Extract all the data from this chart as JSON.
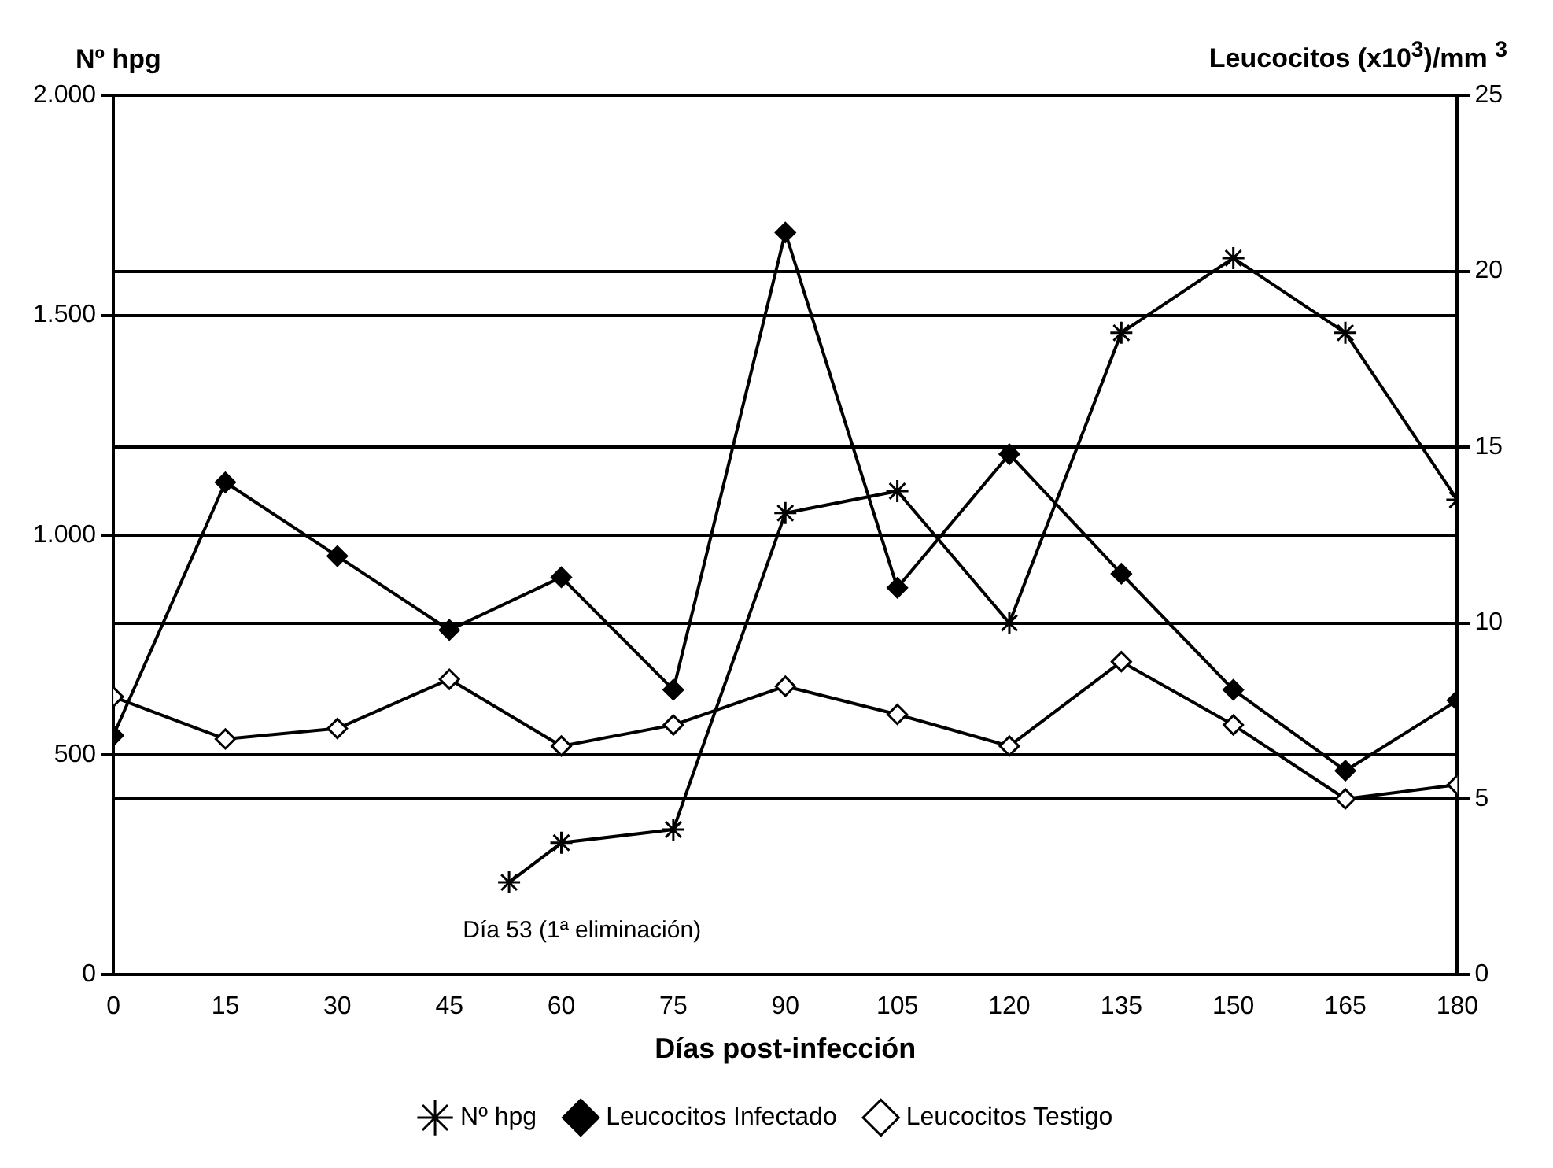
{
  "chart_data": {
    "type": "line",
    "xlabel": "Días post-infección",
    "ylabel": "Nº hpg",
    "y2label": "Leucocitos (x10$^{3}$)/mm $^{3}$",
    "series": [
      {
        "name": "Nº hpg",
        "color": "#000000",
        "marker": "cross",
        "x": [
          53,
          60,
          75,
          90,
          105,
          120,
          135,
          150,
          165,
          180
        ],
        "values": [
          210,
          300,
          330,
          1050,
          1100,
          800,
          1460,
          1630,
          1460,
          1080
        ]
      },
      {
        "name": "Leucocitos Infectado",
        "color": "#000000",
        "marker": "diamond",
        "axis": "y2",
        "x": [
          0,
          15,
          30,
          45,
          60,
          75,
          90,
          105,
          120,
          135,
          150,
          165,
          180
        ],
        "values": [
          6.8,
          14.0,
          11.9,
          9.8,
          11.3,
          8.1,
          21.1,
          11.0,
          14.8,
          11.4,
          8.1,
          5.8,
          7.8
        ]
      },
      {
        "name": "Leucocitos Testigo",
        "color": "#000000",
        "marker": "diamond",
        "axis": "y2",
        "x": [
          0,
          15,
          30,
          45,
          60,
          75,
          90,
          105,
          120,
          135,
          150,
          165,
          180
        ],
        "values": [
          7.9,
          6.7,
          7.0,
          8.4,
          6.5,
          7.1,
          8.2,
          7.4,
          6.5,
          8.9,
          7.1,
          5.0,
          5.4
        ]
      }
    ],
    "xlim": [
      0,
      180
    ],
    "xticks": [
      0,
      15,
      30,
      45,
      60,
      75,
      90,
      105,
      120,
      135,
      150,
      165,
      180
    ],
    "ylim": [
      0,
      2000
    ],
    "yticks": [
      0,
      {
        "value": 500,
        "label": "500"
      },
      {
        "value": 1000,
        "label": "1.000"
      },
      {
        "value": 1500,
        "label": "1.500"
      },
      {
        "value": 2000,
        "label": "2.000"
      }
    ],
    "y2lim": [
      0,
      25
    ],
    "y2ticks": [
      0,
      5,
      10,
      15,
      20,
      25
    ],
    "grid": "y",
    "legend": "bottom",
    "annotations": [
      "Día 53 (1ª eliminación)"
    ]
  }
}
